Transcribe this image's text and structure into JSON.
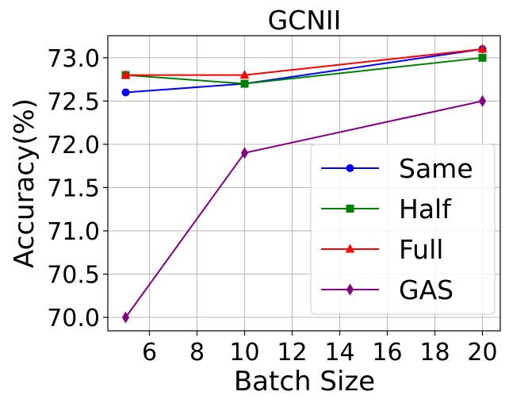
{
  "chart_data": {
    "type": "line",
    "title": "GCNII",
    "xlabel": "Batch Size",
    "ylabel": "Accuracy(%)",
    "xlim": [
      4.25,
      20.75
    ],
    "ylim": [
      69.845,
      73.255
    ],
    "xticks": [
      6,
      8,
      10,
      12,
      14,
      16,
      18,
      20
    ],
    "yticks": [
      70.0,
      70.5,
      71.0,
      71.5,
      72.0,
      72.5,
      73.0
    ],
    "xtick_labels": [
      "6",
      "8",
      "10",
      "12",
      "14",
      "16",
      "18",
      "20"
    ],
    "ytick_labels": [
      "70.0",
      "70.5",
      "71.0",
      "71.5",
      "72.0",
      "72.5",
      "73.0"
    ],
    "grid": true,
    "legend_position": "lower-right",
    "x": [
      5,
      10,
      20
    ],
    "series": [
      {
        "name": "Same",
        "values": [
          72.6,
          72.7,
          73.1
        ],
        "color": "#0000ff",
        "marker": "circle"
      },
      {
        "name": "Half",
        "values": [
          72.8,
          72.7,
          73.0
        ],
        "color": "#008000",
        "marker": "square"
      },
      {
        "name": "Full",
        "values": [
          72.8,
          72.8,
          73.1
        ],
        "color": "#ff0000",
        "marker": "triangle"
      },
      {
        "name": "GAS",
        "values": [
          70.0,
          71.9,
          72.5
        ],
        "color": "#800080",
        "marker": "diamond"
      }
    ]
  }
}
